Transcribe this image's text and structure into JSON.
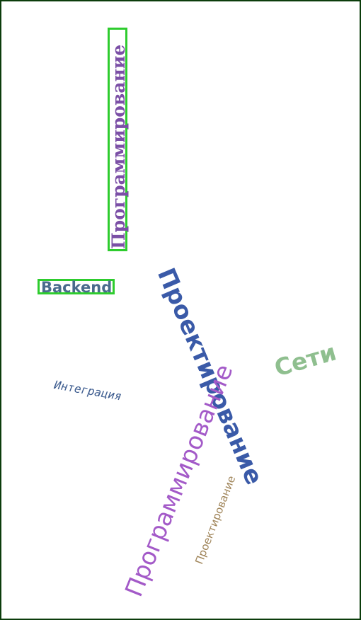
{
  "words": {
    "prog_top": "Программирование",
    "backend": "Backend",
    "proekt_big": "Проектирование",
    "prog_purple": "Программирование",
    "proekt_small": "Проектирование",
    "seti": "Сети",
    "integr": "Интеграция"
  },
  "colors": {
    "prog_top": "#7b4fa6",
    "backend": "#4a6b8c",
    "proekt_big": "#3a5aa8",
    "prog_purple": "#a35ac8",
    "proekt_small": "#a0855a",
    "seti": "#8fbf8f",
    "integr": "#3d5c8f",
    "highlight_box": "#2ecc2e",
    "frame": "#0b3d0b"
  }
}
